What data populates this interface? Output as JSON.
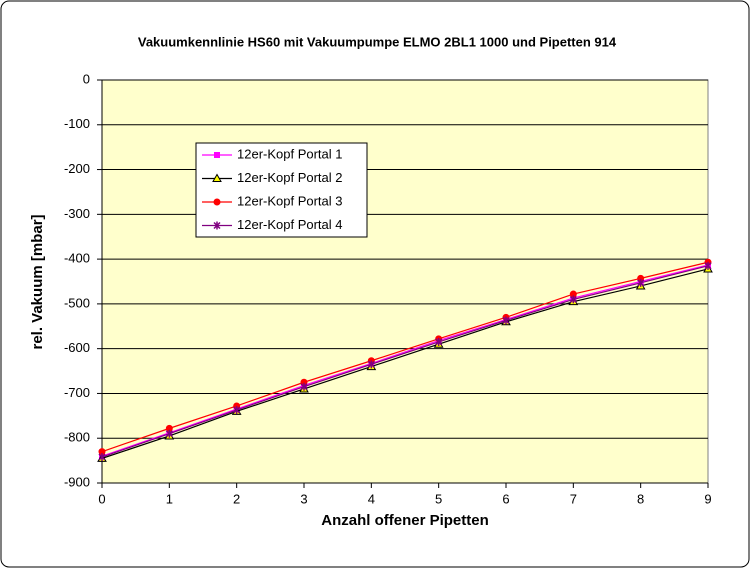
{
  "chart_data": {
    "type": "line",
    "title": "Vakuumkennlinie HS60 mit Vakuumpumpe ELMO 2BL1 1000 und Pipetten 914",
    "x_label": "Anzahl offener Pipetten",
    "y_label": "rel. Vakuum [mbar]",
    "x": [
      0,
      1,
      2,
      3,
      4,
      5,
      6,
      7,
      8,
      9
    ],
    "xlim": [
      0,
      9
    ],
    "xticks": [
      0,
      1,
      2,
      3,
      4,
      5,
      6,
      7,
      8,
      9
    ],
    "ylim": [
      -900,
      0
    ],
    "yticks": [
      0,
      -100,
      -200,
      -300,
      -400,
      -500,
      -600,
      -700,
      -800,
      -900
    ],
    "grid": true,
    "series": [
      {
        "name": "12er-Kopf Portal 1",
        "color": "#ff00ff",
        "marker": "square",
        "values": [
          -840,
          -788,
          -735,
          -682,
          -633,
          -582,
          -535,
          -487,
          -450,
          -413
        ]
      },
      {
        "name": "12er-Kopf Portal 2",
        "color": "#000000",
        "marker": "triangle",
        "values": [
          -845,
          -795,
          -740,
          -690,
          -640,
          -590,
          -540,
          -495,
          -460,
          -422
        ]
      },
      {
        "name": "12er-Kopf Portal 3",
        "color": "#ff0000",
        "marker": "circle",
        "values": [
          -830,
          -778,
          -728,
          -675,
          -627,
          -578,
          -530,
          -478,
          -443,
          -407
        ]
      },
      {
        "name": "12er-Kopf Portal 4",
        "color": "#800080",
        "marker": "star",
        "values": [
          -842,
          -790,
          -737,
          -685,
          -635,
          -585,
          -537,
          -490,
          -453,
          -415
        ]
      }
    ]
  }
}
